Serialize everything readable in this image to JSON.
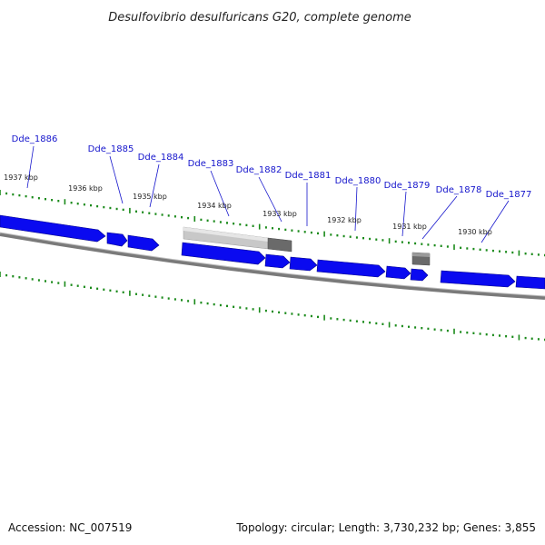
{
  "title": "Desulfovibrio desulfuricans G20, complete genome",
  "footer": {
    "accession": "Accession: NC_007519",
    "summary": "Topology: circular; Length: 3,730,232 bp; Genes: 3,855"
  },
  "colors": {
    "cds": "#0a0af0",
    "rna_light": "#c4c4c4",
    "rna_dark": "#6a6a6a",
    "backbone": "#777777",
    "ticks": "#1a8a1a",
    "label": "#1515cc"
  },
  "gene_labels": [
    {
      "name": "Dde_1886"
    },
    {
      "name": "Dde_1885"
    },
    {
      "name": "Dde_1884"
    },
    {
      "name": "Dde_1883"
    },
    {
      "name": "Dde_1882"
    },
    {
      "name": "Dde_1881"
    },
    {
      "name": "Dde_1880"
    },
    {
      "name": "Dde_1879"
    },
    {
      "name": "Dde_1878"
    },
    {
      "name": "Dde_1877"
    }
  ],
  "kbp_labels": [
    {
      "text": "1937 kbp"
    },
    {
      "text": "1936 kbp"
    },
    {
      "text": "1935 kbp"
    },
    {
      "text": "1934 kbp"
    },
    {
      "text": "1933 kbp"
    },
    {
      "text": "1932 kbp"
    },
    {
      "text": "1931 kbp"
    },
    {
      "text": "1930 kbp"
    }
  ]
}
